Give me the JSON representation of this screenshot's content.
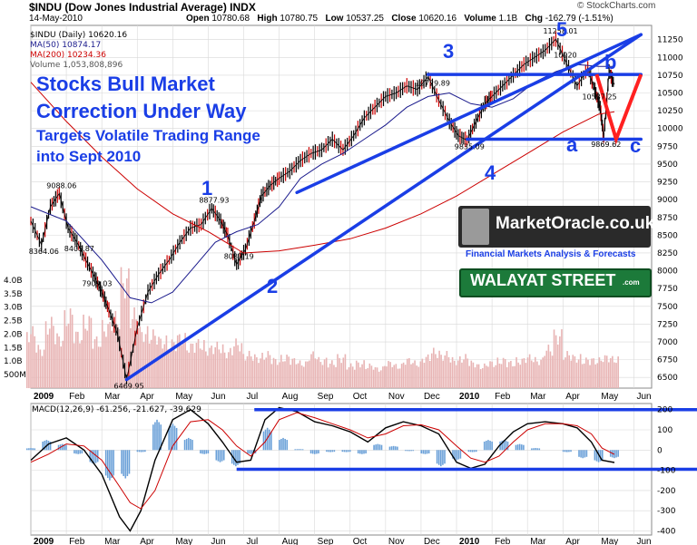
{
  "header": {
    "symbol_line": "$INDU (Dow Jones Industrial Average) INDX",
    "date": "14-May-2010",
    "open_label": "Open",
    "open": "10780.68",
    "high_label": "High",
    "high": "10780.75",
    "low_label": "Low",
    "low": "10537.25",
    "close_label": "Close",
    "close": "10620.16",
    "volume_label": "Volume",
    "volume": "1.1B",
    "change_label": "Chg",
    "change": "-162.79 (-1.51%)",
    "copyright": "© StockCharts.com"
  },
  "legend": {
    "price": "$INDU (Daily) 10620.16",
    "ma50": "MA(50) 10874.17",
    "ma200": "MA(200) 10234.36",
    "volume": "Volume 1,053,808,896",
    "macd": "MACD(12,26,9) -61.256, -21.627, -39.629"
  },
  "headline": {
    "line1": "Stocks Bull Market",
    "line2": "Correction Under Way",
    "line3": "Targets Volatile Trading Range",
    "line4": "into Sept 2010"
  },
  "waves": {
    "w1": "1",
    "w2": "2",
    "w3": "3",
    "w4": "4",
    "w5": "5",
    "wa": "a",
    "wb": "b",
    "wc": "c"
  },
  "branding": {
    "site": "MarketOracle.co.uk",
    "site_sub": "Financial Markets Analysis & Forecasts",
    "street": "WALAYAT STREET",
    "street_suffix": ".com"
  },
  "colors": {
    "price": "#000000",
    "up": "#000000",
    "down": "#cc0000",
    "ma50": "#1a1a8c",
    "ma200": "#cc0000",
    "trend": "#1a3ee6",
    "projection": "#ff2020",
    "volume": "#e8b4b4",
    "histogram": "#6aa0d8",
    "grid": "#d8d8d8"
  },
  "chart_data": [
    {
      "type": "line",
      "title": "$INDU (Daily)",
      "x_ticks": [
        "2009",
        "Feb",
        "Mar",
        "Apr",
        "May",
        "Jun",
        "Jul",
        "Aug",
        "Sep",
        "Oct",
        "Nov",
        "Dec",
        "2010",
        "Feb",
        "Mar",
        "Apr",
        "May",
        "Jun"
      ],
      "y_ticks": [
        "6500",
        "6750",
        "7000",
        "7250",
        "7500",
        "7750",
        "8000",
        "8250",
        "8500",
        "8750",
        "9000",
        "9250",
        "9500",
        "9750",
        "10000",
        "10250",
        "10500",
        "10750",
        "11000",
        "11250"
      ],
      "volume_ticks": [
        "500M",
        "1.0B",
        "1.5B",
        "2.0B",
        "2.5B",
        "3.0B",
        "3.5B",
        "4.0B"
      ],
      "ylim": [
        6350,
        11450
      ],
      "series": [
        {
          "name": "$INDU (Daily)",
          "x": [
            0,
            0.3,
            0.55,
            0.8,
            1.05,
            1.3,
            1.55,
            1.8,
            2.0,
            2.2,
            2.45,
            2.7,
            3.0,
            3.3,
            3.6,
            3.9,
            4.2,
            4.5,
            4.8,
            5.1,
            5.35,
            5.55,
            5.8,
            6.05,
            6.3,
            6.5,
            6.75,
            7.0,
            7.3,
            7.6,
            7.9,
            8.2,
            8.5,
            8.8,
            9.1,
            9.4,
            9.7,
            10.0,
            10.3,
            10.6,
            10.9,
            11.2,
            11.5,
            11.8,
            12.05,
            12.3,
            12.55,
            12.8,
            13.0,
            13.3,
            13.6,
            13.9,
            14.2,
            14.5,
            14.8,
            15.1,
            15.4,
            15.7,
            15.9,
            16.05,
            16.15,
            16.3,
            16.45
          ],
          "y": [
            8700,
            8364.06,
            8900,
            9088.06,
            8600,
            8405.87,
            8150,
            7909.03,
            7700,
            7450,
            7100,
            6469.95,
            7200,
            7700,
            7950,
            8150,
            8400,
            8600,
            8650,
            8877.93,
            8700,
            8500,
            8087.19,
            8300,
            8700,
            9050,
            9200,
            9300,
            9400,
            9550,
            9650,
            9700,
            9850,
            9700,
            9900,
            10150,
            10300,
            10450,
            10500,
            10600,
            10550,
            10729.89,
            10400,
            10100,
            9900,
            9835.09,
            10100,
            10350,
            10450,
            10600,
            10750,
            10900,
            11000,
            11100,
            11258.01,
            10920,
            10600,
            10850,
            10537.25,
            10300,
            9869.62,
            10800,
            10620.16
          ]
        },
        {
          "name": "MA(50)",
          "x": [
            0,
            1.0,
            2.0,
            2.8,
            3.4,
            4.0,
            4.6,
            5.2,
            5.8,
            6.4,
            7.0,
            7.6,
            8.2,
            8.8,
            9.4,
            10.0,
            10.6,
            11.2,
            11.8,
            12.4,
            13.0,
            13.6,
            14.2,
            14.8,
            15.4,
            16.0,
            16.45
          ],
          "y": [
            8900,
            8700,
            8150,
            7620,
            7550,
            7700,
            8050,
            8400,
            8550,
            8650,
            8900,
            9300,
            9500,
            9650,
            9850,
            10050,
            10300,
            10450,
            10500,
            10350,
            10300,
            10420,
            10650,
            10800,
            10900,
            10874.17,
            10874.17
          ]
        },
        {
          "name": "MA(200)",
          "x": [
            0,
            1.0,
            2.0,
            3.0,
            4.0,
            5.0,
            6.0,
            7.0,
            8.0,
            9.0,
            10.0,
            11.0,
            12.0,
            13.0,
            14.0,
            15.0,
            16.0,
            16.45
          ],
          "y": [
            10650,
            10100,
            9600,
            9150,
            8800,
            8550,
            8250,
            8280,
            8360,
            8450,
            8600,
            8800,
            9050,
            9350,
            9650,
            9950,
            10200,
            10234.36
          ]
        }
      ],
      "point_labels": [
        {
          "x": 0.3,
          "y": 8364.06,
          "text": "8364.06"
        },
        {
          "x": 0.8,
          "y": 9088.06,
          "text": "9088.06"
        },
        {
          "x": 1.3,
          "y": 8405.87,
          "text": "8405.87"
        },
        {
          "x": 1.8,
          "y": 7909.03,
          "text": "7909.03"
        },
        {
          "x": 2.7,
          "y": 6469.95,
          "text": "6469.95"
        },
        {
          "x": 5.1,
          "y": 8877.93,
          "text": "8877.93"
        },
        {
          "x": 5.8,
          "y": 8087.19,
          "text": "8087.19"
        },
        {
          "x": 11.2,
          "y": 10729.89,
          "text": "10729.89"
        },
        {
          "x": 12.3,
          "y": 9835.09,
          "text": "9835.09"
        },
        {
          "x": 14.8,
          "y": 11258.01,
          "text": "11258.01"
        },
        {
          "x": 15.1,
          "y": 10920,
          "text": "10920"
        },
        {
          "x": 15.9,
          "y": 10537.25,
          "text": "10537.25"
        },
        {
          "x": 16.15,
          "y": 9869.62,
          "text": "9869.62"
        }
      ],
      "trendlines": [
        {
          "x": [
            2.7,
            17.2
          ],
          "y": [
            6469.95,
            11320
          ]
        },
        {
          "x": [
            7.5,
            17.2
          ],
          "y": [
            9100,
            11320
          ]
        },
        {
          "x": [
            11.2,
            17.2
          ],
          "y": [
            10760,
            10760
          ]
        },
        {
          "x": [
            12.3,
            17.2
          ],
          "y": [
            9850,
            9850
          ]
        }
      ],
      "projection": {
        "x": [
          15.95,
          16.5,
          17.2
        ],
        "y": [
          10760,
          9850,
          10760
        ]
      },
      "volume_series": {
        "name": "Volume",
        "values_billion": [
          2.0,
          1.4,
          2.3,
          1.8,
          2.6,
          1.9,
          2.4,
          1.7,
          2.2,
          2.5,
          3.9,
          2.6,
          2.0,
          1.9,
          1.7,
          1.6,
          1.8,
          1.5,
          1.6,
          1.4,
          1.5,
          1.3,
          1.6,
          1.2,
          1.1,
          1.2,
          1.0,
          1.1,
          1.0,
          0.9,
          1.2,
          1.0,
          0.9,
          1.1,
          0.8,
          0.9,
          0.8,
          0.7,
          0.9,
          0.8,
          1.0,
          0.9,
          1.1,
          1.3,
          1.2,
          1.0,
          1.1,
          0.9,
          0.8,
          0.9,
          1.0,
          0.9,
          1.0,
          1.1,
          1.0,
          1.4,
          1.9,
          1.2,
          1.1,
          1.0,
          1.0,
          1.1,
          1.05
        ]
      }
    },
    {
      "type": "line",
      "title": "MACD(12,26,9)",
      "y_ticks": [
        "-400",
        "-300",
        "-200",
        "-100",
        "0",
        "100",
        "200"
      ],
      "ylim": [
        -420,
        230
      ],
      "series": [
        {
          "name": "MACD",
          "x": [
            0,
            0.5,
            1.0,
            1.5,
            2.0,
            2.5,
            2.8,
            3.1,
            3.5,
            4.0,
            4.5,
            5.0,
            5.4,
            5.8,
            6.2,
            6.6,
            7.0,
            7.5,
            8.0,
            8.5,
            9.0,
            9.5,
            10.0,
            10.5,
            11.0,
            11.5,
            12.0,
            12.4,
            12.8,
            13.2,
            13.6,
            14.0,
            14.5,
            15.0,
            15.4,
            15.8,
            16.1,
            16.45
          ],
          "y": [
            -50,
            30,
            60,
            0,
            -120,
            -330,
            -400,
            -300,
            -50,
            150,
            200,
            130,
            40,
            -60,
            -50,
            150,
            210,
            190,
            140,
            120,
            90,
            40,
            110,
            140,
            120,
            80,
            -60,
            -90,
            -70,
            20,
            90,
            130,
            140,
            130,
            110,
            40,
            -50,
            -61.256
          ]
        },
        {
          "name": "Signal",
          "x": [
            0,
            0.5,
            1.0,
            1.5,
            2.0,
            2.5,
            2.8,
            3.1,
            3.5,
            4.0,
            4.5,
            5.0,
            5.4,
            5.8,
            6.2,
            6.6,
            7.0,
            7.5,
            8.0,
            8.5,
            9.0,
            9.5,
            10.0,
            10.5,
            11.0,
            11.5,
            12.0,
            12.4,
            12.8,
            13.2,
            13.6,
            14.0,
            14.5,
            15.0,
            15.4,
            15.8,
            16.1,
            16.45
          ],
          "y": [
            -60,
            -20,
            30,
            20,
            -50,
            -180,
            -260,
            -290,
            -200,
            20,
            140,
            150,
            100,
            20,
            -30,
            40,
            150,
            185,
            160,
            130,
            100,
            60,
            80,
            120,
            125,
            100,
            20,
            -40,
            -60,
            -30,
            40,
            100,
            130,
            130,
            120,
            80,
            10,
            -21.627
          ]
        }
      ],
      "histogram_values": [
        10,
        50,
        30,
        -20,
        -70,
        -150,
        -140,
        -10,
        150,
        130,
        60,
        -20,
        -60,
        -80,
        -20,
        110,
        60,
        5,
        -20,
        -10,
        -10,
        -20,
        30,
        20,
        -5,
        -20,
        -80,
        -50,
        -10,
        50,
        50,
        30,
        10,
        0,
        -10,
        -40,
        -60,
        -39.629
      ]
    }
  ]
}
